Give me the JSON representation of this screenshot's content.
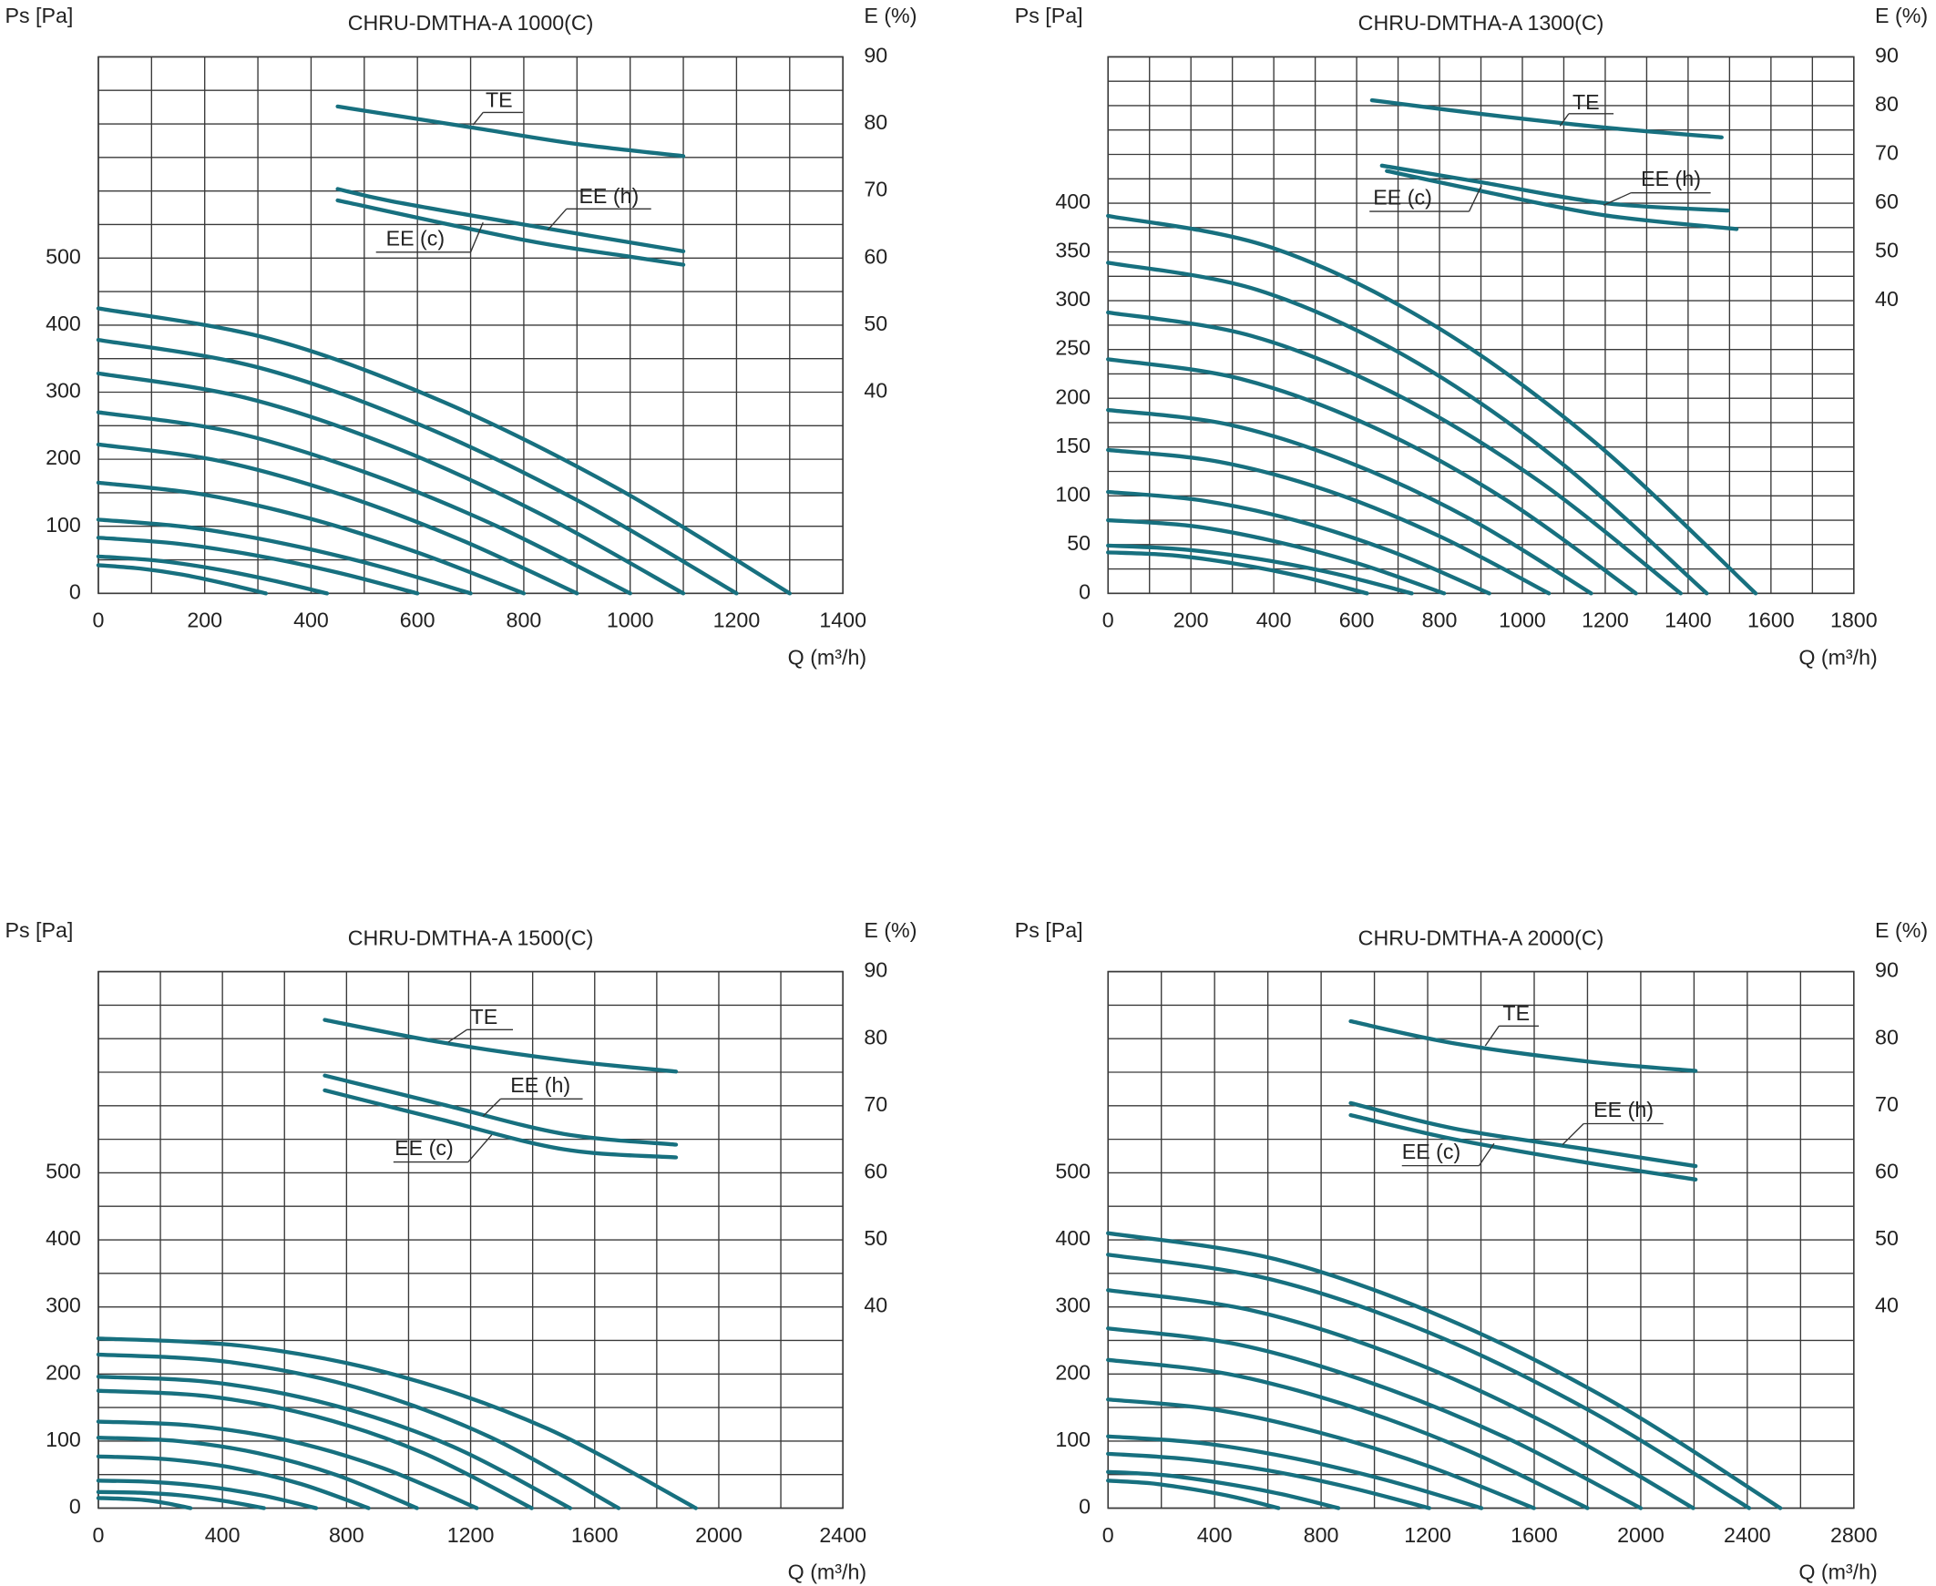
{
  "chart_data": [
    {
      "type": "line",
      "title": "CHRU-DMTHA-A 1000(C)",
      "ylabel": "Ps [Pa]",
      "y2label": "E (%)",
      "xlabel": "Q (m³/h)",
      "color": "#17707f",
      "xlim": [
        0,
        1400
      ],
      "xticks": [
        0,
        200,
        400,
        600,
        800,
        1000,
        1200,
        1400
      ],
      "xgrid": [
        0,
        100,
        200,
        300,
        400,
        500,
        600,
        700,
        800,
        900,
        1000,
        1100,
        1200,
        1300,
        1400
      ],
      "ylim": [
        0,
        800
      ],
      "yticks": [
        0,
        100,
        200,
        300,
        400,
        500
      ],
      "ygrid": [
        0,
        50,
        100,
        150,
        200,
        250,
        300,
        350,
        400,
        450,
        500,
        550,
        600,
        650,
        700,
        750,
        800
      ],
      "y2lim": [
        10,
        90
      ],
      "y2ticks": [
        40,
        50,
        60,
        70,
        80,
        90
      ],
      "series": [
        {
          "x": [
            0,
            325,
            650,
            975,
            1300
          ],
          "values": [
            425,
            379,
            285,
            157,
            0
          ]
        },
        {
          "x": [
            0,
            300,
            600,
            900,
            1200
          ],
          "values": [
            378,
            337,
            253,
            139,
            0
          ]
        },
        {
          "x": [
            0,
            275,
            550,
            825,
            1100
          ],
          "values": [
            328,
            292,
            220,
            121,
            0
          ]
        },
        {
          "x": [
            0,
            250,
            500,
            750,
            1000
          ],
          "values": [
            270,
            241,
            181,
            100,
            0
          ]
        },
        {
          "x": [
            0,
            225,
            450,
            675,
            900
          ],
          "values": [
            222,
            198,
            149,
            82,
            0
          ]
        },
        {
          "x": [
            0,
            200,
            400,
            600,
            800
          ],
          "values": [
            165,
            147,
            111,
            61,
            0
          ]
        },
        {
          "x": [
            0,
            175,
            350,
            525,
            700
          ],
          "values": [
            110,
            98,
            74,
            41,
            0
          ]
        },
        {
          "x": [
            0,
            150,
            300,
            450,
            600
          ],
          "values": [
            83,
            74,
            56,
            31,
            0
          ]
        },
        {
          "x": [
            0,
            108,
            215,
            323,
            430
          ],
          "values": [
            55,
            49,
            37,
            20,
            0
          ]
        },
        {
          "x": [
            0,
            79,
            158,
            236,
            315
          ],
          "values": [
            42,
            37,
            28,
            15,
            0
          ]
        },
        {
          "name": "TE",
          "axis": "y2",
          "x": [
            450,
            700,
            900,
            1100
          ],
          "values": [
            82.6,
            79.5,
            77,
            75.2
          ]
        },
        {
          "name": "EE (h)",
          "axis": "y2",
          "x": [
            450,
            550,
            800,
            1100
          ],
          "values": [
            70.3,
            68.5,
            65,
            61
          ]
        },
        {
          "name": "EE (c)",
          "axis": "y2",
          "x": [
            450,
            800,
            1000,
            1100
          ],
          "values": [
            68.6,
            62.7,
            60.2,
            59
          ]
        }
      ]
    },
    {
      "type": "line",
      "title": "CHRU-DMTHA-A 1300(C)",
      "ylabel": "Ps [Pa]",
      "y2label": "E (%)",
      "xlabel": "Q (m³/h)",
      "color": "#17707f",
      "xlim": [
        0,
        1800
      ],
      "xticks": [
        0,
        200,
        400,
        600,
        800,
        1000,
        1200,
        1400,
        1600,
        1800
      ],
      "xgrid": [
        0,
        100,
        200,
        300,
        400,
        500,
        600,
        700,
        800,
        900,
        1000,
        1100,
        1200,
        1300,
        1400,
        1500,
        1600,
        1700,
        1800
      ],
      "ylim": [
        0,
        550
      ],
      "yticks": [
        0,
        50,
        100,
        150,
        200,
        250,
        300,
        350,
        400
      ],
      "ygrid": [
        0,
        25,
        50,
        75,
        100,
        125,
        150,
        175,
        200,
        225,
        250,
        275,
        300,
        325,
        350,
        375,
        400,
        425,
        450,
        475,
        500,
        525,
        550
      ],
      "y2lim": [
        -20,
        90
      ],
      "y2ticks": [
        40,
        50,
        60,
        70,
        80,
        90
      ],
      "series": [
        {
          "x": [
            0,
            391,
            782,
            1172,
            1563
          ],
          "values": [
            387,
            355,
            276,
            156,
            0
          ]
        },
        {
          "x": [
            0,
            361,
            723,
            1084,
            1445
          ],
          "values": [
            339,
            311,
            242,
            137,
            0
          ]
        },
        {
          "x": [
            0,
            346,
            691,
            1037,
            1382
          ],
          "values": [
            288,
            264,
            205,
            116,
            0
          ]
        },
        {
          "x": [
            0,
            319,
            637,
            956,
            1274
          ],
          "values": [
            240,
            220,
            171,
            97,
            0
          ]
        },
        {
          "x": [
            0,
            292,
            583,
            875,
            1166
          ],
          "values": [
            188,
            173,
            134,
            76,
            0
          ]
        },
        {
          "x": [
            0,
            266,
            532,
            798,
            1064
          ],
          "values": [
            147,
            135,
            105,
            59,
            0
          ]
        },
        {
          "x": [
            0,
            230,
            460,
            690,
            920
          ],
          "values": [
            104,
            95,
            74,
            42,
            0
          ]
        },
        {
          "x": [
            0,
            203,
            406,
            608,
            811
          ],
          "values": [
            75,
            69,
            53,
            30,
            0
          ]
        },
        {
          "x": [
            0,
            183,
            367,
            550,
            733
          ],
          "values": [
            49,
            45,
            35,
            20,
            0
          ]
        },
        {
          "x": [
            0,
            156,
            313,
            469,
            625
          ],
          "values": [
            42,
            39,
            30,
            17,
            0
          ]
        },
        {
          "name": "TE",
          "axis": "y2",
          "x": [
            637,
            900,
            1200,
            1481
          ],
          "values": [
            81.1,
            78.3,
            75.5,
            73.5
          ]
        },
        {
          "name": "EE (h)",
          "axis": "y2",
          "x": [
            661,
            900,
            1200,
            1496
          ],
          "values": [
            67.7,
            64.3,
            60,
            58.5
          ]
        },
        {
          "name": "EE (c)",
          "axis": "y2",
          "x": [
            673,
            900,
            1200,
            1517
          ],
          "values": [
            66.6,
            62.5,
            57.5,
            54.7
          ]
        }
      ]
    },
    {
      "type": "line",
      "title": "CHRU-DMTHA-A 1500(C)",
      "ylabel": "Ps [Pa]",
      "y2label": "E (%)",
      "xlabel": "Q (m³/h)",
      "color": "#17707f",
      "xlim": [
        0,
        2400
      ],
      "xticks": [
        0,
        400,
        800,
        1200,
        1600,
        2000,
        2400
      ],
      "xgrid": [
        0,
        200,
        400,
        600,
        800,
        1000,
        1200,
        1400,
        1600,
        1800,
        2000,
        2200,
        2400
      ],
      "ylim": [
        0,
        800
      ],
      "yticks": [
        0,
        100,
        200,
        300,
        400,
        500
      ],
      "ygrid": [
        0,
        50,
        100,
        150,
        200,
        250,
        300,
        350,
        400,
        450,
        500,
        550,
        600,
        650,
        700,
        750,
        800
      ],
      "y2lim": [
        10,
        90
      ],
      "y2ticks": [
        40,
        50,
        60,
        70,
        80,
        90
      ],
      "series": [
        {
          "x": [
            0,
            482,
            963,
            1445,
            1926
          ],
          "values": [
            253,
            241,
            198,
            119,
            0
          ]
        },
        {
          "x": [
            0,
            419,
            839,
            1258,
            1677
          ],
          "values": [
            229,
            218,
            179,
            107,
            0
          ]
        },
        {
          "x": [
            0,
            380,
            761,
            1141,
            1521
          ],
          "values": [
            196,
            187,
            153,
            92,
            0
          ]
        },
        {
          "x": [
            0,
            349,
            699,
            1048,
            1397
          ],
          "values": [
            175,
            167,
            137,
            82,
            0
          ]
        },
        {
          "x": [
            0,
            305,
            610,
            915,
            1220
          ],
          "values": [
            129,
            123,
            101,
            60,
            0
          ]
        },
        {
          "x": [
            0,
            257,
            514,
            770,
            1027
          ],
          "values": [
            105,
            100,
            82,
            49,
            0
          ]
        },
        {
          "x": [
            0,
            218,
            436,
            653,
            871
          ],
          "values": [
            77,
            73,
            60,
            36,
            0
          ]
        },
        {
          "x": [
            0,
            176,
            351,
            527,
            702
          ],
          "values": [
            41,
            39,
            32,
            19,
            0
          ]
        },
        {
          "x": [
            0,
            134,
            267,
            401,
            534
          ],
          "values": [
            24,
            23,
            19,
            11,
            0
          ]
        },
        {
          "x": [
            0,
            74,
            149,
            223,
            297
          ],
          "values": [
            15,
            14,
            12,
            7,
            0
          ]
        },
        {
          "name": "TE",
          "axis": "y2",
          "x": [
            730,
            1100,
            1500,
            1862
          ],
          "values": [
            82.8,
            79.5,
            76.8,
            75.1
          ]
        },
        {
          "name": "EE (h)",
          "axis": "y2",
          "x": [
            730,
            1100,
            1500,
            1862
          ],
          "values": [
            74.5,
            70.3,
            65.8,
            64.2
          ]
        },
        {
          "name": "EE (c)",
          "axis": "y2",
          "x": [
            730,
            1100,
            1500,
            1862
          ],
          "values": [
            72.3,
            68,
            63.5,
            62.3
          ]
        }
      ]
    },
    {
      "type": "line",
      "title": "CHRU-DMTHA-A 2000(C)",
      "ylabel": "Ps [Pa]",
      "y2label": "E (%)",
      "xlabel": "Q (m³/h)",
      "color": "#17707f",
      "xlim": [
        0,
        2800
      ],
      "xticks": [
        0,
        400,
        800,
        1200,
        1600,
        2000,
        2400,
        2800
      ],
      "xgrid": [
        0,
        200,
        400,
        600,
        800,
        1000,
        1200,
        1400,
        1600,
        1800,
        2000,
        2200,
        2400,
        2600,
        2800
      ],
      "ylim": [
        0,
        800
      ],
      "yticks": [
        0,
        100,
        200,
        300,
        400,
        500
      ],
      "ygrid": [
        0,
        50,
        100,
        150,
        200,
        250,
        300,
        350,
        400,
        450,
        500,
        550,
        600,
        650,
        700,
        750,
        800
      ],
      "y2lim": [
        10,
        90
      ],
      "y2ticks": [
        40,
        50,
        60,
        70,
        80,
        90
      ],
      "series": [
        {
          "x": [
            0,
            631,
            1262,
            1893,
            2524
          ],
          "values": [
            410,
            371,
            284,
            159,
            0
          ]
        },
        {
          "x": [
            0,
            602,
            1204,
            1805,
            2407
          ],
          "values": [
            378,
            342,
            262,
            146,
            0
          ]
        },
        {
          "x": [
            0,
            549,
            1099,
            1648,
            2197
          ],
          "values": [
            325,
            294,
            225,
            126,
            0
          ]
        },
        {
          "x": [
            0,
            500,
            1000,
            1500,
            2000
          ],
          "values": [
            268,
            243,
            185,
            104,
            0
          ]
        },
        {
          "x": [
            0,
            450,
            900,
            1350,
            1800
          ],
          "values": [
            221,
            200,
            153,
            86,
            0
          ]
        },
        {
          "x": [
            0,
            400,
            800,
            1199,
            1599
          ],
          "values": [
            162,
            147,
            112,
            63,
            0
          ]
        },
        {
          "x": [
            0,
            351,
            701,
            1052,
            1402
          ],
          "values": [
            107,
            97,
            74,
            41,
            0
          ]
        },
        {
          "x": [
            0,
            302,
            603,
            905,
            1206
          ],
          "values": [
            81,
            73,
            56,
            31,
            0
          ]
        },
        {
          "x": [
            0,
            216,
            433,
            649,
            865
          ],
          "values": [
            54,
            49,
            37,
            21,
            0
          ]
        },
        {
          "x": [
            0,
            160,
            320,
            480,
            640
          ],
          "values": [
            41,
            37,
            28,
            16,
            0
          ]
        },
        {
          "name": "TE",
          "axis": "y2",
          "x": [
            911,
            1300,
            1800,
            2206
          ],
          "values": [
            82.6,
            79.3,
            76.6,
            75.2
          ]
        },
        {
          "name": "EE (h)",
          "axis": "y2",
          "x": [
            911,
            1300,
            1800,
            2206
          ],
          "values": [
            70.4,
            66.6,
            63.5,
            61
          ]
        },
        {
          "name": "EE (c)",
          "axis": "y2",
          "x": [
            911,
            1300,
            1800,
            2206
          ],
          "values": [
            68.6,
            65,
            61.5,
            59
          ]
        }
      ]
    }
  ]
}
